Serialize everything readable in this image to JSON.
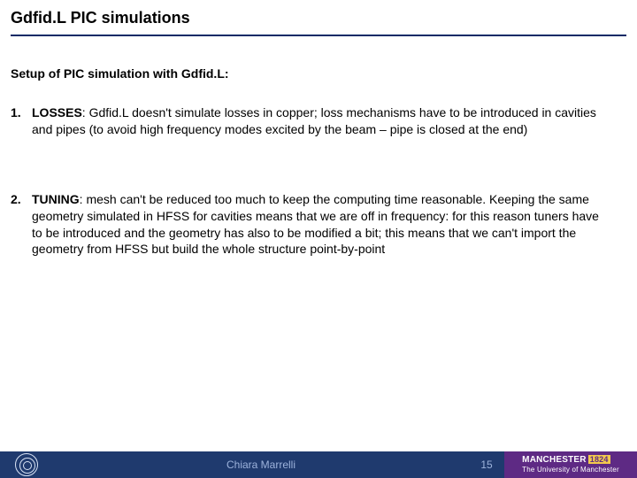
{
  "title": "Gdfid.L PIC simulations",
  "subhead": "Setup of PIC simulation with Gdfid.L:",
  "items": [
    {
      "num": "1.",
      "lead": "LOSSES",
      "text": ": Gdfid.L doesn't simulate losses in copper; loss mechanisms have to be introduced in cavities and pipes (to avoid high frequency modes excited by the beam – pipe is closed at the end)"
    },
    {
      "num": "2.",
      "lead": "TUNING",
      "text": ": mesh can't be reduced too much to keep the computing time reasonable. Keeping the same geometry simulated in HFSS for cavities means that we are off in frequency: for this reason tuners have to be introduced and the geometry has also to be modified a bit; this means that we can't import the geometry from HFSS but build the whole structure point-by-point"
    }
  ],
  "footer": {
    "author": "Chiara Marrelli",
    "page": "15",
    "brand_main": "MANCHESTER",
    "brand_year": "1824",
    "brand_sub": "The University of Manchester"
  },
  "colors": {
    "rule": "#0a2a66",
    "footer_bg": "#1f3a6e",
    "footer_text": "#9db3dc",
    "brand_bg": "#5e2a84",
    "brand_year_bg": "#f2c94c"
  }
}
